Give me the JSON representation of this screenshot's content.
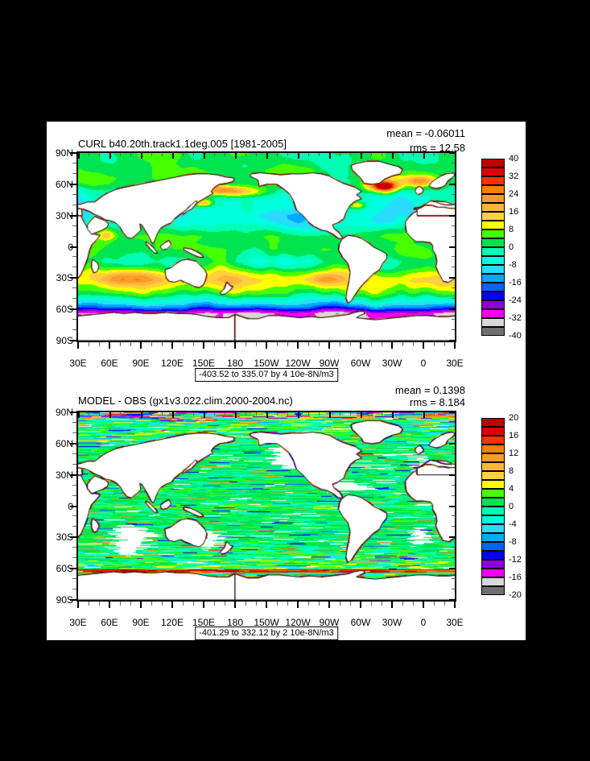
{
  "window": {
    "background": "#000000",
    "panel_background": "#FFFFFF"
  },
  "panels": [
    {
      "title": "CURL b40.20th.track1.1deg.005 [1981-2005]",
      "mean_label": "mean = -0.06011",
      "rms_label": "rms = 12.58",
      "caption": "-403.52 to 335.07 by 4 10e-8N/m3",
      "colorbar_labels": [
        "40",
        "32",
        "24",
        "16",
        "8",
        "0",
        "-8",
        "-16",
        "-24",
        "-32",
        "-40"
      ]
    },
    {
      "title": "MODEL - OBS (gx1v3.022.clim.2000-2004.nc)",
      "mean_label": "mean = 0.1398",
      "rms_label": "rms = 8.184",
      "caption": "-401.29 to 332.12 by 2 10e-8N/m3",
      "colorbar_labels": [
        "20",
        "16",
        "12",
        "8",
        "4",
        "0",
        "-4",
        "-8",
        "-12",
        "-16",
        "-20"
      ]
    }
  ],
  "axes": {
    "lat_labels": [
      "90N",
      "60N",
      "30N",
      "0",
      "30S",
      "60S",
      "90S"
    ],
    "lon_labels": [
      "30E",
      "60E",
      "90E",
      "120E",
      "150E",
      "180",
      "150W",
      "120W",
      "90W",
      "60W",
      "30W",
      "0",
      "30E"
    ]
  },
  "palette_top_to_bottom": [
    "#C00000",
    "#E10000",
    "#FF3000",
    "#F58200",
    "#FB9B28",
    "#FFB53C",
    "#FFD23C",
    "#FFFF00",
    "#46FF00",
    "#00E450",
    "#00FFB4",
    "#00FFDC",
    "#28DCFF",
    "#00AAFF",
    "#0064FF",
    "#0000FF",
    "#8C00DC",
    "#F000F0",
    "#D8D8D8",
    "#707070"
  ],
  "chart_data": [
    {
      "type": "heatmap",
      "subtype": "filled-contour global lat-lon map",
      "title": "CURL b40.20th.track1.1deg.005 [1981-2005]",
      "stats": {
        "mean": -0.06011,
        "rms": 12.58
      },
      "field_min": -403.52,
      "field_max": 335.07,
      "contour_interval": 4,
      "units": "10e-8N/m3",
      "colorbar_tick_values": [
        40,
        32,
        24,
        16,
        8,
        0,
        -8,
        -16,
        -24,
        -32,
        -40
      ],
      "x_ticks": [
        "30E",
        "60E",
        "90E",
        "120E",
        "150E",
        "180",
        "150W",
        "120W",
        "90W",
        "60W",
        "30W",
        "0",
        "30E"
      ],
      "y_ticks": [
        "90N",
        "60N",
        "30N",
        "0",
        "30S",
        "60S",
        "90S"
      ],
      "legend_position": "right",
      "grid": false
    },
    {
      "type": "heatmap",
      "subtype": "filled-contour global lat-lon difference map",
      "title": "MODEL - OBS (gx1v3.022.clim.2000-2004.nc)",
      "stats": {
        "mean": 0.1398,
        "rms": 8.184
      },
      "field_min": -401.29,
      "field_max": 332.12,
      "contour_interval": 2,
      "units": "10e-8N/m3",
      "colorbar_tick_values": [
        20,
        16,
        12,
        8,
        4,
        0,
        -4,
        -8,
        -12,
        -16,
        -20
      ],
      "x_ticks": [
        "30E",
        "60E",
        "90E",
        "120E",
        "150E",
        "180",
        "150W",
        "120W",
        "90W",
        "60W",
        "30W",
        "0",
        "30E"
      ],
      "y_ticks": [
        "90N",
        "60N",
        "30N",
        "0",
        "30S",
        "60S",
        "90S"
      ],
      "legend_position": "right",
      "grid": false
    }
  ]
}
